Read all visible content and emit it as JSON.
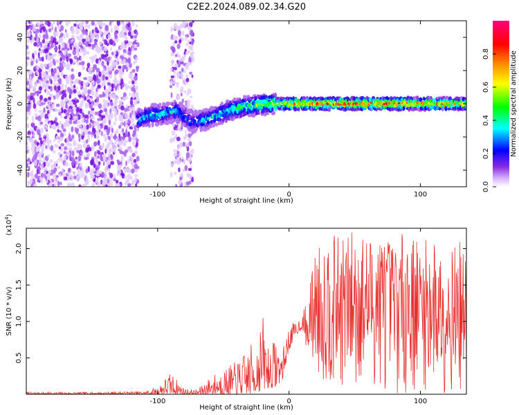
{
  "title": "C2E2.2024.089.02.34.G20",
  "colors": {
    "snr_line": "#e8302e",
    "axes": "#000000",
    "noise_purple": "#8a2be2",
    "background": "#ffffff"
  },
  "chart_data": [
    {
      "type": "heatmap",
      "xlabel": "Height of straight line (km)",
      "ylabel": "Frequency (Hz)",
      "xlim": [
        -200,
        135
      ],
      "ylim": [
        -50,
        50
      ],
      "x_ticks": [
        -100,
        0,
        100
      ],
      "x_tick_labels": [
        "-100",
        "0",
        "100"
      ],
      "y_ticks": [
        -40,
        -20,
        0,
        20,
        40
      ],
      "y_tick_labels": [
        "-40",
        "-20",
        "0",
        "20",
        "40"
      ],
      "colorbar": {
        "label": "Normalized spectral amplitude",
        "range": [
          0,
          1
        ],
        "ticks": [
          0.0,
          0.2,
          0.4,
          0.6,
          0.8
        ],
        "tick_labels": [
          "0.0",
          "0.2",
          "0.4",
          "0.6",
          "0.8"
        ],
        "colormap": "rainbow (white, purple, blue, cyan, green, yellow, orange, red, magenta)"
      },
      "ridge": {
        "description": "frequency of peak spectral amplitude vs height",
        "x": [
          -115,
          -105,
          -95,
          -85,
          -75,
          -65,
          -55,
          -45,
          -35,
          -25,
          -15,
          -5,
          0,
          20,
          40,
          60,
          80,
          100,
          120,
          135
        ],
        "freq": [
          -10,
          -7,
          -6,
          -4,
          -11,
          -10,
          -7,
          -4,
          -2,
          -1,
          0,
          0,
          0,
          0,
          0,
          0,
          0,
          0,
          0,
          0
        ],
        "amplitude": [
          0.35,
          0.4,
          0.4,
          0.35,
          0.3,
          0.35,
          0.4,
          0.45,
          0.5,
          0.55,
          0.6,
          0.7,
          0.8,
          0.9,
          0.9,
          0.95,
          0.9,
          0.85,
          0.8,
          0.75
        ]
      },
      "noise_regions": [
        {
          "x_range": [
            -200,
            -115
          ],
          "amplitude": 0.05
        },
        {
          "x_range": [
            -90,
            -73
          ],
          "amplitude": 0.04
        }
      ]
    },
    {
      "type": "line",
      "xlabel": "Height of straight line (km)",
      "ylabel": "SNR (10 * v/v)",
      "y_multiplier_label": "(x10",
      "y_multiplier_exponent": "4",
      "y_multiplier_close": ")",
      "xlim": [
        -200,
        135
      ],
      "ylim": [
        0,
        22800
      ],
      "x_ticks": [
        -100,
        0,
        100
      ],
      "x_tick_labels": [
        "-100",
        "0",
        "100"
      ],
      "y_ticks": [
        5000,
        10000,
        15000,
        20000
      ],
      "y_tick_labels": [
        "0.5",
        "1.0",
        "1.5",
        "2.0"
      ],
      "series": [
        {
          "envelope_x": [
            -200,
            -150,
            -110,
            -100,
            -95,
            -90,
            -85,
            -80,
            -70,
            -60,
            -50,
            -40,
            -30,
            -25,
            -20,
            -15,
            -10,
            -5,
            0,
            5,
            10,
            15,
            20,
            25,
            30,
            40,
            50,
            60,
            70,
            80,
            90,
            100,
            110,
            120,
            130,
            135
          ],
          "envelope_upper": [
            300,
            300,
            400,
            1000,
            2200,
            3000,
            2000,
            800,
            600,
            2500,
            3500,
            4500,
            6500,
            8000,
            11000,
            6500,
            8000,
            6000,
            9500,
            10000,
            11000,
            14000,
            20000,
            21000,
            22000,
            21500,
            22800,
            22000,
            22500,
            21000,
            22800,
            21000,
            21500,
            20000,
            21000,
            18000
          ],
          "envelope_lower": [
            0,
            0,
            0,
            0,
            0,
            0,
            0,
            0,
            0,
            0,
            0,
            0,
            0,
            200,
            500,
            800,
            1000,
            2000,
            6000,
            8000,
            9000,
            5000,
            3000,
            1000,
            500,
            300,
            0,
            200,
            500,
            100,
            0,
            300,
            0,
            200,
            0,
            400
          ]
        }
      ]
    }
  ]
}
